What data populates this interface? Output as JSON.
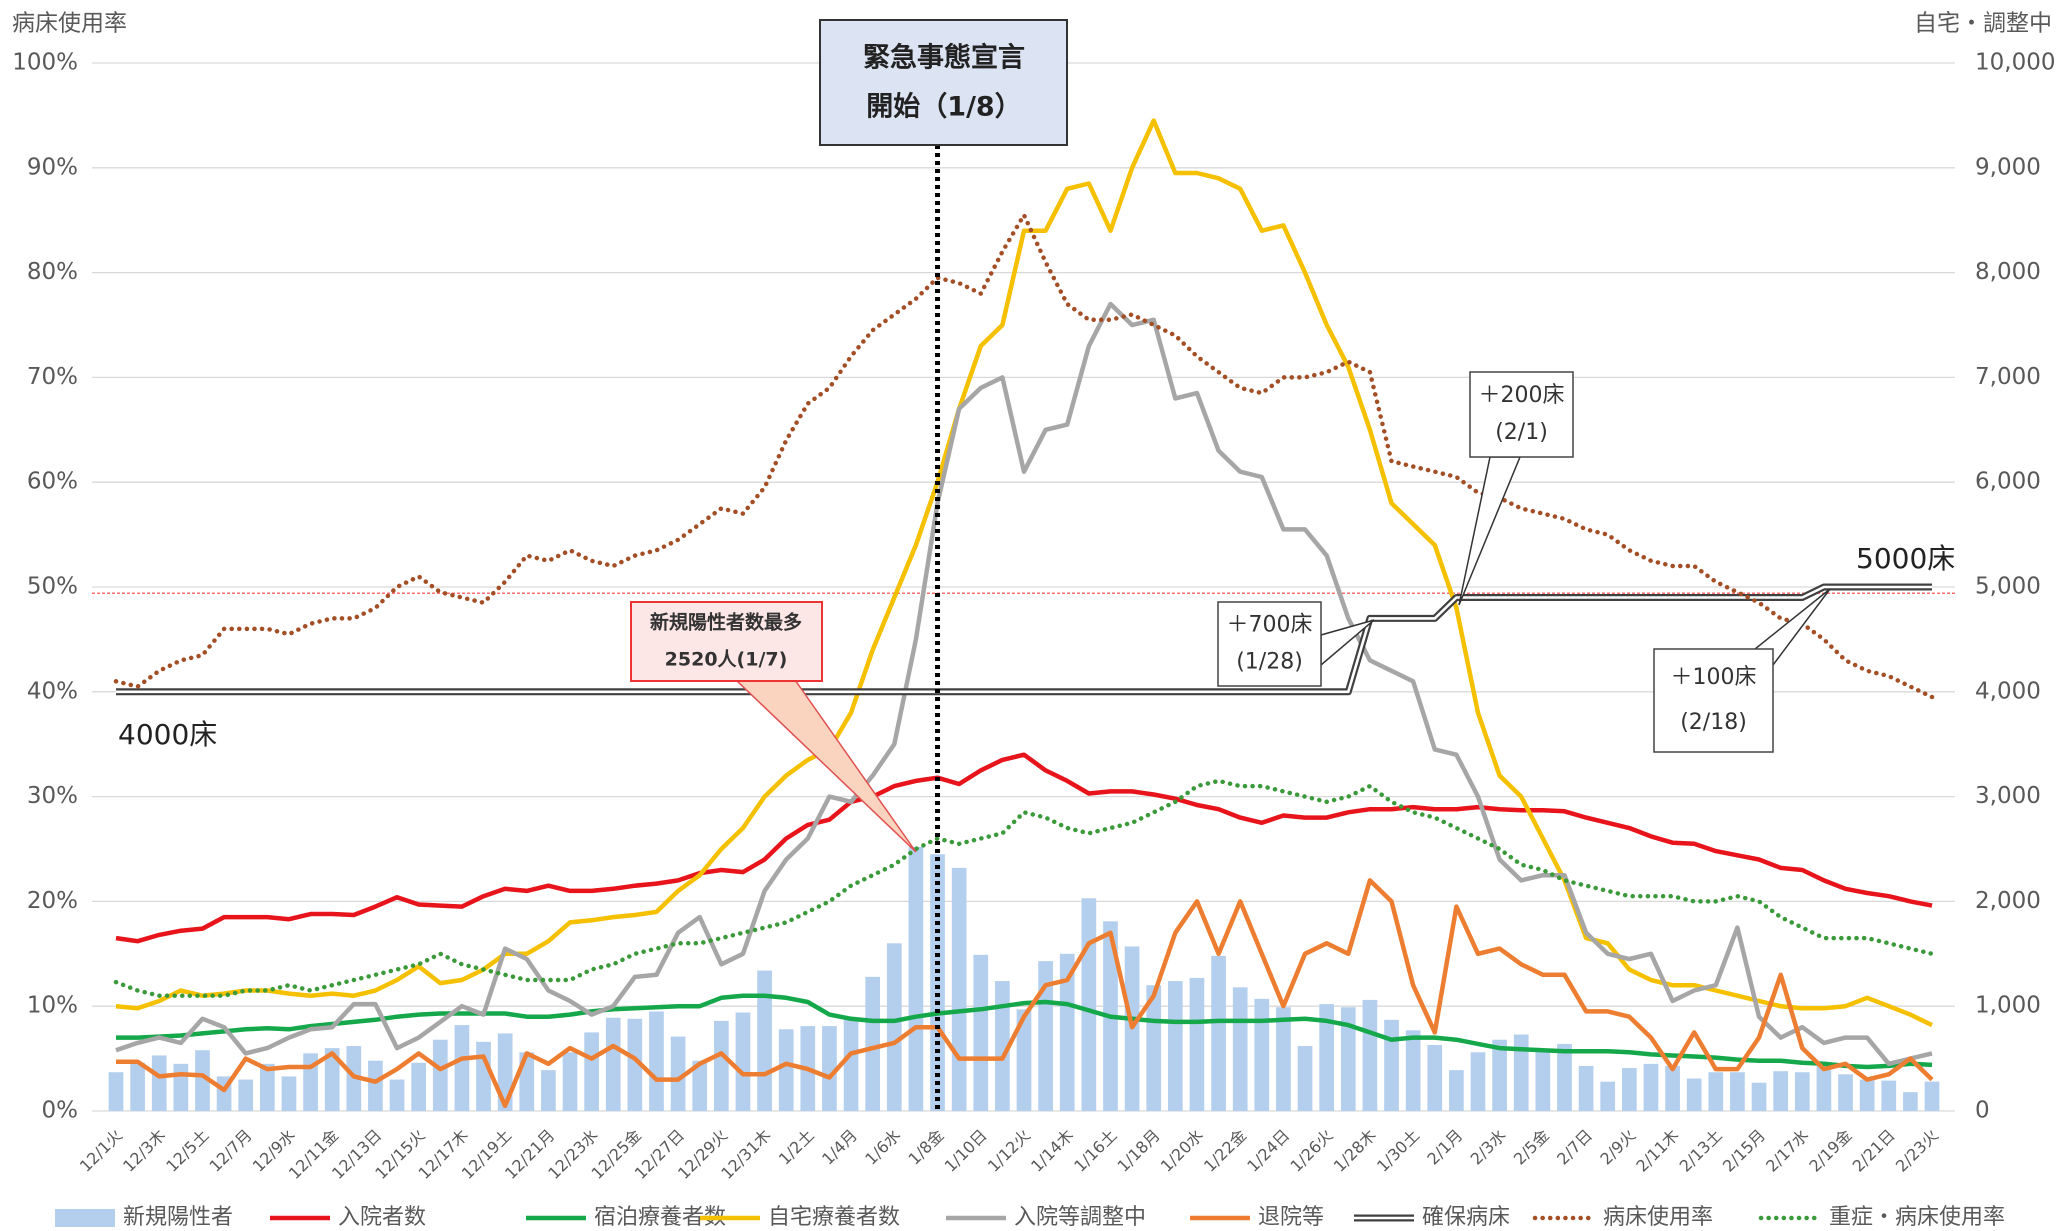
{
  "chart_data": {
    "type": "combo",
    "y_label": "病床使用率",
    "y2_label": "自宅・調整中",
    "categories": [
      "12/1火",
      null,
      "12/3木",
      null,
      "12/5土",
      null,
      "12/7月",
      null,
      "12/9水",
      null,
      "12/11金",
      null,
      "12/13日",
      null,
      "12/15火",
      null,
      "12/17木",
      null,
      "12/19土",
      null,
      "12/21月",
      null,
      "12/23水",
      null,
      "12/25金",
      null,
      "12/27日",
      null,
      "12/29火",
      null,
      "12/31木",
      null,
      "1/2土",
      null,
      "1/4月",
      null,
      "1/6水",
      null,
      "1/8金",
      null,
      "1/10日",
      null,
      "1/12火",
      null,
      "1/14木",
      null,
      "1/16土",
      null,
      "1/18月",
      null,
      "1/20水",
      null,
      "1/22金",
      null,
      "1/24日",
      null,
      "1/26火",
      null,
      "1/28木",
      null,
      "1/30土",
      null,
      "2/1月",
      null,
      "2/3水",
      null,
      "2/5金",
      null,
      "2/7日",
      null,
      "2/9火",
      null,
      "2/11木",
      null,
      "2/13土",
      null,
      "2/15月",
      null,
      "2/17水",
      null,
      "2/19金",
      null,
      "2/21日",
      null,
      "2/23火"
    ],
    "ylim": [
      0,
      100
    ],
    "yticks": [
      {
        "value": 0,
        "label": "0%"
      },
      {
        "value": 10,
        "label": "10%"
      },
      {
        "value": 20,
        "label": "20%"
      },
      {
        "value": 30,
        "label": "30%"
      },
      {
        "value": 40,
        "label": "40%"
      },
      {
        "value": 50,
        "label": "50%"
      },
      {
        "value": 60,
        "label": "60%"
      },
      {
        "value": 70,
        "label": "70%"
      },
      {
        "value": 80,
        "label": "80%"
      },
      {
        "value": 90,
        "label": "90%"
      },
      {
        "value": 100,
        "label": "100%"
      }
    ],
    "y2lim": [
      0,
      10000
    ],
    "y2ticks": [
      0,
      {
        "value": 1000,
        "label": "1,000"
      },
      {
        "value": 2000,
        "label": "2,000"
      },
      {
        "value": 3000,
        "label": "3,000"
      },
      {
        "value": 4000,
        "label": "4,000"
      },
      {
        "value": 5000,
        "label": "5,000"
      },
      {
        "value": 6000,
        "label": "6,000"
      },
      {
        "value": 7000,
        "label": "7,000"
      },
      {
        "value": 8000,
        "label": "8,000"
      },
      {
        "value": 9000,
        "label": "9,000"
      },
      {
        "value": 10000,
        "label": "10,000"
      }
    ],
    "grid": true,
    "reference_line": {
      "value": 49.4,
      "color": "#ff7070"
    },
    "series": [
      {
        "name": "新規陽性者",
        "type": "bar",
        "style": "solid",
        "color": "#b4cfee",
        "axis": "y2",
        "values": [
          370,
          460,
          530,
          450,
          580,
          330,
          300,
          450,
          330,
          550,
          600,
          620,
          480,
          300,
          460,
          680,
          820,
          660,
          740,
          560,
          390,
          560,
          750,
          890,
          880,
          950,
          710,
          480,
          860,
          940,
          1340,
          780,
          810,
          810,
          880,
          1280,
          1600,
          2520,
          2450,
          2320,
          1490,
          1240,
          970,
          1430,
          1500,
          2030,
          1810,
          1570,
          1200,
          1240,
          1270,
          1480,
          1180,
          1070,
          990,
          620,
          1020,
          990,
          1060,
          870,
          770,
          630,
          390,
          560,
          680,
          730,
          580,
          640,
          430,
          280,
          410,
          450,
          430,
          310,
          370,
          370,
          270,
          380,
          370,
          450,
          350,
          300,
          290,
          180,
          280
        ]
      },
      {
        "name": "入院者数",
        "type": "line",
        "style": "solid",
        "color": "#e8141b",
        "axis": "y2",
        "values": [
          1650,
          1620,
          1680,
          1720,
          1740,
          1850,
          1850,
          1850,
          1830,
          1880,
          1880,
          1870,
          1950,
          2040,
          1970,
          1960,
          1950,
          2050,
          2120,
          2100,
          2150,
          2100,
          2100,
          2120,
          2150,
          2170,
          2200,
          2270,
          2300,
          2280,
          2400,
          2600,
          2730,
          2780,
          2950,
          3000,
          3100,
          3150,
          3180,
          3120,
          3250,
          3350,
          3400,
          3250,
          3150,
          3030,
          3050,
          3050,
          3020,
          2980,
          2920,
          2880,
          2800,
          2750,
          2820,
          2800,
          2800,
          2850,
          2880,
          2880,
          2900,
          2880,
          2880,
          2900,
          2880,
          2870,
          2870,
          2860,
          2800,
          2750,
          2700,
          2620,
          2560,
          2550,
          2480,
          2440,
          2400,
          2320,
          2300,
          2200,
          2120,
          2080,
          2050,
          2000,
          1960
        ]
      },
      {
        "name": "宿泊療養者数",
        "type": "line",
        "style": "solid",
        "color": "#14a84b",
        "axis": "y2",
        "values": [
          700,
          700,
          710,
          720,
          740,
          760,
          780,
          790,
          780,
          810,
          830,
          850,
          870,
          900,
          920,
          930,
          930,
          930,
          930,
          900,
          900,
          920,
          950,
          970,
          980,
          990,
          1000,
          1000,
          1080,
          1100,
          1100,
          1080,
          1040,
          920,
          880,
          860,
          860,
          900,
          930,
          950,
          970,
          1000,
          1030,
          1040,
          1020,
          960,
          900,
          880,
          860,
          850,
          850,
          860,
          860,
          860,
          870,
          880,
          860,
          820,
          750,
          680,
          700,
          700,
          680,
          640,
          600,
          590,
          580,
          570,
          570,
          570,
          560,
          540,
          530,
          520,
          510,
          490,
          480,
          480,
          460,
          450,
          430,
          420,
          430,
          450,
          440
        ]
      },
      {
        "name": "自宅療養者数",
        "type": "line",
        "style": "solid",
        "color": "#f5c000",
        "axis": "y2",
        "values": [
          1000,
          980,
          1050,
          1150,
          1100,
          1120,
          1150,
          1150,
          1120,
          1100,
          1120,
          1100,
          1150,
          1250,
          1380,
          1220,
          1250,
          1350,
          1500,
          1500,
          1620,
          1800,
          1820,
          1850,
          1870,
          1900,
          2100,
          2250,
          2500,
          2700,
          3000,
          3200,
          3350,
          3450,
          3800,
          4400,
          4900,
          5400,
          6000,
          6700,
          7300,
          7500,
          8400,
          8400,
          8800,
          8850,
          8400,
          9000,
          9450,
          8950,
          8950,
          8900,
          8800,
          8400,
          8450,
          8000,
          7500,
          7100,
          6500,
          5800,
          5600,
          5400,
          4800,
          3800,
          3200,
          3000,
          2600,
          2200,
          1650,
          1600,
          1350,
          1250,
          1200,
          1200,
          1150,
          1100,
          1050,
          1000,
          980,
          980,
          1000,
          1080,
          1000,
          920,
          820
        ]
      },
      {
        "name": "入院等調整中",
        "type": "line",
        "style": "solid",
        "color": "#a6a6a6",
        "axis": "y2",
        "values": [
          580,
          650,
          700,
          650,
          880,
          800,
          550,
          600,
          700,
          780,
          800,
          1020,
          1020,
          600,
          700,
          850,
          1000,
          920,
          1550,
          1450,
          1150,
          1050,
          920,
          1000,
          1280,
          1300,
          1700,
          1850,
          1400,
          1500,
          2100,
          2400,
          2600,
          3000,
          2950,
          3200,
          3500,
          4500,
          5800,
          6700,
          6900,
          7000,
          6100,
          6500,
          6550,
          7300,
          7700,
          7500,
          7550,
          6800,
          6850,
          6300,
          6100,
          6050,
          5550,
          5550,
          5300,
          4700,
          4300,
          4200,
          4100,
          3450,
          3400,
          3000,
          2400,
          2200,
          2250,
          2250,
          1700,
          1500,
          1450,
          1500,
          1050,
          1150,
          1200,
          1750,
          900,
          700,
          800,
          650,
          700,
          700,
          450,
          500,
          550
        ]
      },
      {
        "name": "退院等",
        "type": "line",
        "style": "solid",
        "color": "#ed7d31",
        "axis": "y2",
        "values": [
          470,
          470,
          330,
          350,
          340,
          200,
          500,
          400,
          420,
          420,
          550,
          330,
          280,
          400,
          550,
          400,
          500,
          520,
          50,
          550,
          450,
          600,
          500,
          620,
          500,
          300,
          300,
          450,
          550,
          350,
          350,
          450,
          400,
          320,
          550,
          600,
          650,
          800,
          800,
          500,
          500,
          500,
          900,
          1200,
          1250,
          1600,
          1700,
          800,
          1100,
          1700,
          2000,
          1500,
          2000,
          1500,
          1000,
          1500,
          1600,
          1500,
          2200,
          2000,
          1200,
          750,
          1950,
          1500,
          1550,
          1400,
          1300,
          1300,
          950,
          950,
          900,
          700,
          400,
          750,
          400,
          400,
          700,
          1300,
          600,
          400,
          450,
          300,
          350,
          500,
          300
        ]
      },
      {
        "name": "確保病床",
        "type": "line",
        "style": "double",
        "color": "#404040",
        "axis": "y2",
        "values": [
          4000,
          4000,
          4000,
          4000,
          4000,
          4000,
          4000,
          4000,
          4000,
          4000,
          4000,
          4000,
          4000,
          4000,
          4000,
          4000,
          4000,
          4000,
          4000,
          4000,
          4000,
          4000,
          4000,
          4000,
          4000,
          4000,
          4000,
          4000,
          4000,
          4000,
          4000,
          4000,
          4000,
          4000,
          4000,
          4000,
          4000,
          4000,
          4000,
          4000,
          4000,
          4000,
          4000,
          4000,
          4000,
          4000,
          4000,
          4000,
          4000,
          4000,
          4000,
          4000,
          4000,
          4000,
          4000,
          4000,
          4000,
          4000,
          4700,
          4700,
          4700,
          4700,
          4900,
          4900,
          4900,
          4900,
          4900,
          4900,
          4900,
          4900,
          4900,
          4900,
          4900,
          4900,
          4900,
          4900,
          4900,
          4900,
          4900,
          5000,
          5000,
          5000,
          5000,
          5000,
          5000
        ]
      },
      {
        "name": "病床使用率",
        "type": "line",
        "style": "dotted",
        "color": "#a34e24",
        "axis": "y",
        "values": [
          41,
          40.5,
          42,
          43,
          43.5,
          46,
          46,
          46,
          45.5,
          46.5,
          47,
          47,
          48,
          50,
          51,
          49.5,
          49,
          48.5,
          50.5,
          53,
          52.5,
          53.5,
          52.5,
          52,
          53,
          53.5,
          54.5,
          56,
          57.5,
          57,
          59.5,
          64,
          67.5,
          69,
          72,
          74.5,
          76,
          77.5,
          79.5,
          79,
          78,
          82,
          85.5,
          81,
          77,
          75.5,
          75.5,
          76,
          75,
          74,
          72,
          70.5,
          69,
          68.5,
          70,
          70,
          70.5,
          71.5,
          70.5,
          62,
          61.5,
          61,
          60.5,
          59,
          58.5,
          57.5,
          57,
          56.5,
          55.5,
          55,
          53.5,
          52.5,
          52,
          52,
          50.5,
          49.5,
          48.5,
          47,
          46.5,
          45,
          43,
          42,
          41.5,
          40.5,
          39.5
        ]
      },
      {
        "name": "重症・病床使用率",
        "type": "line",
        "style": "dotted",
        "color": "#3a9a3a",
        "axis": "y",
        "values": [
          12.3,
          11.5,
          11,
          11,
          11,
          11,
          11.5,
          11.5,
          12,
          11.5,
          12,
          12.5,
          13,
          13.5,
          14,
          15,
          14,
          13.5,
          13,
          12.5,
          12.5,
          12.5,
          13.5,
          14,
          15,
          15.5,
          16,
          16,
          16.5,
          17,
          17.5,
          18,
          19,
          20,
          21.5,
          22.5,
          23.5,
          25,
          26,
          25.5,
          26,
          26.5,
          28.5,
          28,
          27,
          26.5,
          27,
          27.5,
          28.5,
          29.5,
          31,
          31.5,
          31,
          31,
          30.5,
          30,
          29.5,
          30,
          31,
          29.5,
          28.5,
          28,
          27,
          26,
          25,
          23.5,
          23,
          22,
          21.5,
          21,
          20.5,
          20.5,
          20.5,
          20,
          20,
          20.5,
          20,
          18.5,
          17.5,
          16.5,
          16.5,
          16.5,
          16,
          15.5,
          15
        ]
      }
    ],
    "annotations": [
      {
        "lines": [
          "緊急事態宣言",
          "開始（1/8）"
        ]
      },
      {
        "lines": [
          "新規陽性者数最多",
          "2520人(1/7)"
        ]
      },
      {
        "lines": [
          "4000床"
        ]
      },
      {
        "lines": [
          "5000床"
        ]
      },
      {
        "lines": [
          "＋700床",
          "(1/28)"
        ]
      },
      {
        "lines": [
          "＋200床",
          "(2/1)"
        ]
      },
      {
        "lines": [
          "＋100床",
          "(2/18)"
        ]
      }
    ]
  }
}
